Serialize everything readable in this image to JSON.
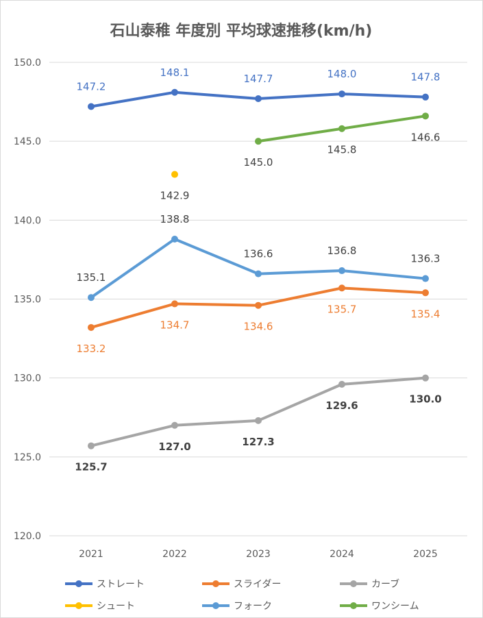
{
  "chart_data": {
    "type": "line",
    "title": "石山泰稚 年度別 平均球速推移(km/h)",
    "xlabel": "",
    "ylabel": "",
    "categories": [
      "2021",
      "2022",
      "2023",
      "2024",
      "2025"
    ],
    "ylim": [
      120.0,
      150.0
    ],
    "yticks": [
      "120.0",
      "125.0",
      "130.0",
      "135.0",
      "140.0",
      "145.0",
      "150.0"
    ],
    "grid": true,
    "legend_position": "bottom",
    "series": [
      {
        "name": "ストレート",
        "color": "#4472C4",
        "values": [
          147.2,
          148.1,
          147.7,
          148.0,
          147.8
        ],
        "labels": [
          "147.2",
          "148.1",
          "147.7",
          "148.0",
          "147.8"
        ],
        "label_color": "#4472C4",
        "label_bold": false
      },
      {
        "name": "スライダー",
        "color": "#ED7D31",
        "values": [
          133.2,
          134.7,
          134.6,
          135.7,
          135.4
        ],
        "labels": [
          "133.2",
          "134.7",
          "134.6",
          "135.7",
          "135.4"
        ],
        "label_color": "#ED7D31",
        "label_bold": false
      },
      {
        "name": "カーブ",
        "color": "#A5A5A5",
        "values": [
          125.7,
          127.0,
          127.3,
          129.6,
          130.0
        ],
        "labels": [
          "125.7",
          "127.0",
          "127.3",
          "129.6",
          "130.0"
        ],
        "label_color": "#404040",
        "label_bold": true
      },
      {
        "name": "シュート",
        "color": "#FFC000",
        "values": [
          null,
          142.9,
          null,
          null,
          null
        ],
        "labels": [
          null,
          "142.9",
          null,
          null,
          null
        ],
        "label_color": "#404040",
        "label_bold": false
      },
      {
        "name": "フォーク",
        "color": "#5B9BD5",
        "values": [
          135.1,
          138.8,
          136.6,
          136.8,
          136.3
        ],
        "labels": [
          "135.1",
          "138.8",
          "136.6",
          "136.8",
          "136.3"
        ],
        "label_color": "#404040",
        "label_bold": false
      },
      {
        "name": "ワンシーム",
        "color": "#70AD47",
        "values": [
          null,
          null,
          145.0,
          145.8,
          146.6
        ],
        "labels": [
          null,
          null,
          "145.0",
          "145.8",
          "146.6"
        ],
        "label_color": "#404040",
        "label_bold": false
      }
    ]
  }
}
